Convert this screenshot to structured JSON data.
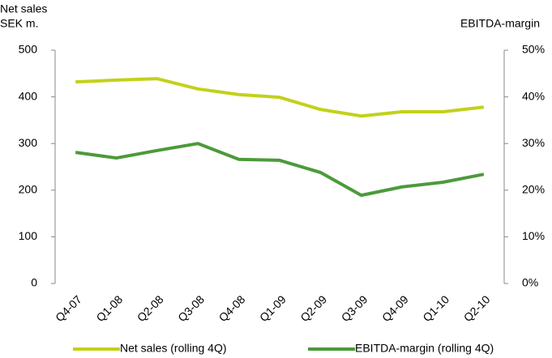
{
  "chart_data": {
    "type": "line",
    "ylabel": [
      "Net sales",
      "SEK m."
    ],
    "y2label": "EBITDA-margin",
    "categories": [
      "Q4-07",
      "Q1-08",
      "Q2-08",
      "Q3-08",
      "Q4-08",
      "Q1-09",
      "Q2-09",
      "Q3-09",
      "Q4-09",
      "Q1-10",
      "Q2-10"
    ],
    "series": [
      {
        "name": "Net sales (rolling 4Q)",
        "color": "#c2d11b",
        "values": [
          432,
          436,
          439,
          417,
          405,
          399,
          373,
          359,
          368,
          368,
          378
        ]
      },
      {
        "name": "EBITDA-margin (rolling 4Q)",
        "color": "#4c9a3b",
        "axis": "y2",
        "values": [
          28.1,
          26.9,
          28.5,
          30.0,
          26.6,
          26.4,
          23.8,
          18.9,
          20.7,
          21.7,
          23.4
        ]
      }
    ],
    "ylim": [
      0,
      500
    ],
    "yticks": [
      0,
      100,
      200,
      300,
      400,
      500
    ],
    "y2lim": [
      0,
      50
    ],
    "y2ticks": [
      {
        "value": 0,
        "label": "0%"
      },
      {
        "value": 10,
        "label": "10%"
      },
      {
        "value": 20,
        "label": "20%"
      },
      {
        "value": 30,
        "label": "30%"
      },
      {
        "value": 40,
        "label": "40%"
      },
      {
        "value": 50,
        "label": "50%"
      }
    ],
    "grid": false,
    "legend": "bottom"
  }
}
